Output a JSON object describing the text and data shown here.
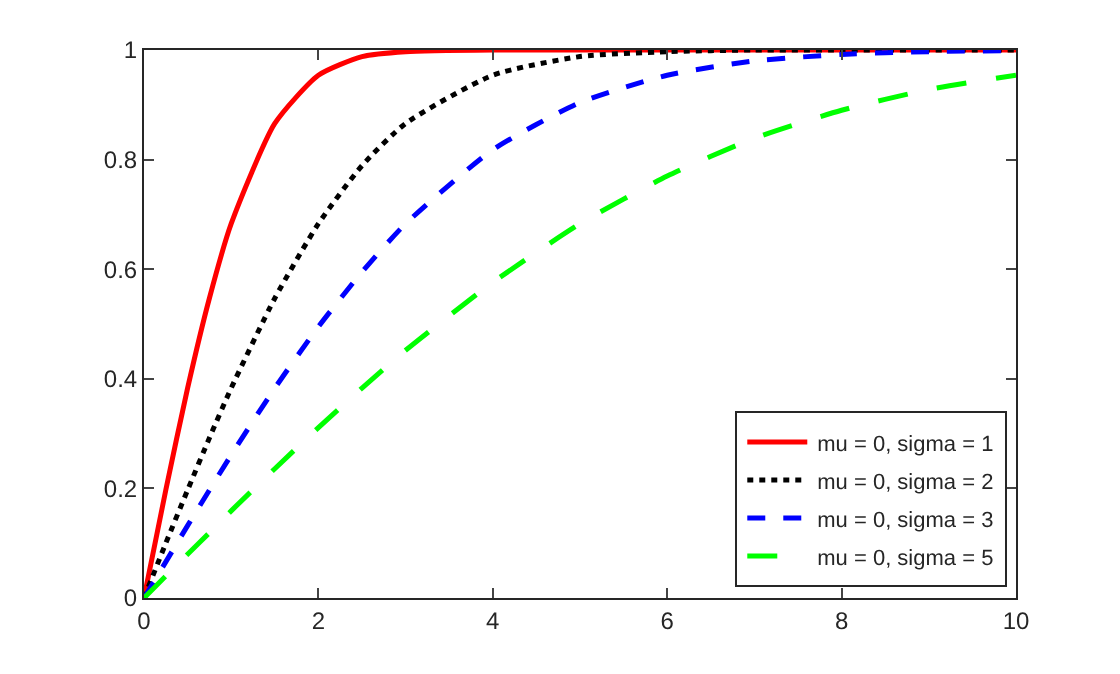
{
  "chart_data": {
    "type": "line",
    "x": [
      0,
      0.25,
      0.5,
      0.75,
      1,
      1.5,
      2,
      2.5,
      3,
      4,
      5,
      6,
      7,
      8,
      9,
      10
    ],
    "series": [
      {
        "name": "mu = 0, sigma = 1",
        "color": "#ff0000",
        "line_style": "solid",
        "values": [
          0,
          0.197,
          0.383,
          0.547,
          0.683,
          0.866,
          0.954,
          0.988,
          0.997,
          1,
          1,
          1,
          1,
          1,
          1,
          1
        ]
      },
      {
        "name": "mu = 0, sigma = 2",
        "color": "#000000",
        "line_style": "dotted",
        "values": [
          0,
          0.1,
          0.197,
          0.292,
          0.383,
          0.547,
          0.683,
          0.789,
          0.866,
          0.954,
          0.988,
          0.997,
          1,
          1,
          1,
          1
        ]
      },
      {
        "name": "mu = 0, sigma = 3",
        "color": "#0000ff",
        "line_style": "dashed",
        "values": [
          0,
          0.066,
          0.132,
          0.197,
          0.261,
          0.383,
          0.495,
          0.595,
          0.683,
          0.818,
          0.904,
          0.954,
          0.98,
          0.992,
          0.997,
          0.999
        ]
      },
      {
        "name": "mu = 0, sigma = 5",
        "color": "#00ff00",
        "line_style": "longdash",
        "values": [
          0,
          0.04,
          0.08,
          0.119,
          0.159,
          0.236,
          0.311,
          0.383,
          0.452,
          0.576,
          0.683,
          0.77,
          0.839,
          0.89,
          0.928,
          0.954
        ]
      }
    ],
    "xlim": [
      0,
      10
    ],
    "xticks": [
      0,
      2,
      4,
      6,
      8,
      10
    ],
    "ylim": [
      0,
      1
    ],
    "yticks": [
      0,
      0.2,
      0.4,
      0.6,
      0.8,
      1
    ],
    "grid": false,
    "legend": "bottom right",
    "marker": "none"
  }
}
